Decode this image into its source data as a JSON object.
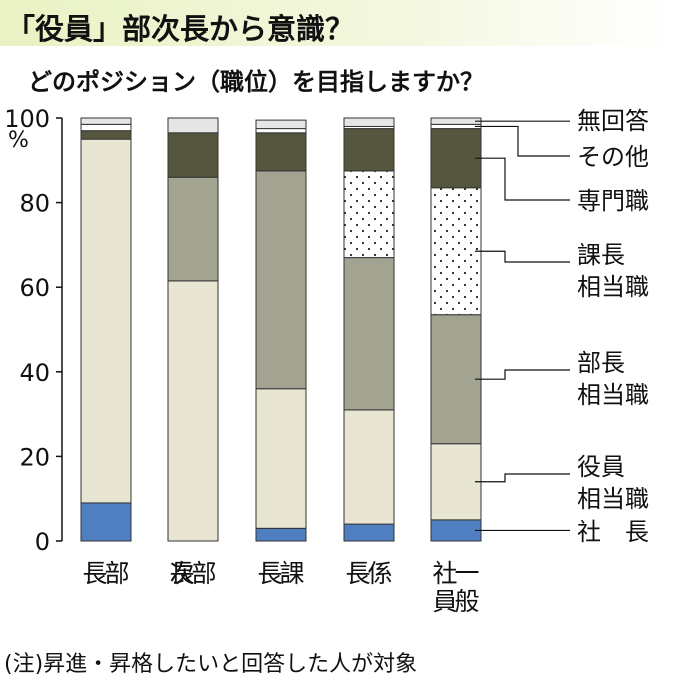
{
  "title": "「役員」部次長から意識？",
  "subtitle": "どのポジション（職位）を目指しますか？",
  "unit": "%",
  "note": "(注)昇進・昇格したいと回答した人が対象",
  "chart_data": {
    "type": "bar",
    "stacked": true,
    "orientation": "vertical",
    "categories": [
      "部長",
      "部次長",
      "課長",
      "係長",
      "一般社員"
    ],
    "category_label_lines": [
      [
        "部",
        "長"
      ],
      [
        "部",
        "次",
        "長"
      ],
      [
        "課",
        "長"
      ],
      [
        "係",
        "長"
      ],
      [
        "一般",
        "社員"
      ]
    ],
    "ylim": [
      0,
      100
    ],
    "yticks": [
      0,
      20,
      40,
      60,
      80,
      100
    ],
    "grid": false,
    "legend_position": "right, aligned to segments",
    "series": [
      {
        "name": "社長",
        "legend_lines": [
          "社　長"
        ],
        "color": "#4f7fc1",
        "pattern": "solid",
        "values": [
          9,
          0,
          3,
          4,
          5
        ]
      },
      {
        "name": "役員相当職",
        "legend_lines": [
          "役員",
          "相当職"
        ],
        "color": "#e8e5d3",
        "pattern": "solid",
        "values": [
          86,
          61.5,
          33,
          27,
          18
        ]
      },
      {
        "name": "部長相当職",
        "legend_lines": [
          "部長",
          "相当職"
        ],
        "color": "#a3a392",
        "pattern": "solid",
        "values": [
          0,
          24.5,
          51.5,
          36,
          30.5
        ]
      },
      {
        "name": "課長相当職",
        "legend_lines": [
          "課長",
          "相当職"
        ],
        "color": "#ffffff",
        "pattern": "dots",
        "values": [
          0,
          0,
          0,
          20.5,
          30
        ]
      },
      {
        "name": "専門職",
        "legend_lines": [
          "専門職"
        ],
        "color": "#56563f",
        "pattern": "solid",
        "values": [
          2,
          10.5,
          9,
          10,
          14
        ]
      },
      {
        "name": "その他",
        "legend_lines": [
          "その他"
        ],
        "color": "#ffffff",
        "pattern": "solid",
        "values": [
          1.5,
          0,
          1,
          0.5,
          1
        ]
      },
      {
        "name": "無回答",
        "legend_lines": [
          "無回答"
        ],
        "color": "#e6e6e6",
        "pattern": "solid",
        "values": [
          1.5,
          3.5,
          2,
          2,
          1.5
        ]
      }
    ]
  }
}
